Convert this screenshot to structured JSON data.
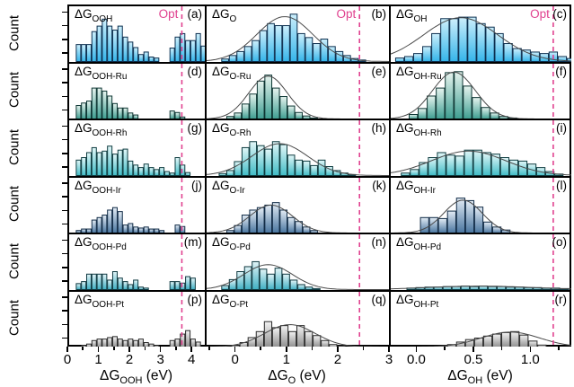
{
  "figure": {
    "ylabel": "Count",
    "opt_label": "Opt",
    "delta_g": "ΔG",
    "unit": " (eV)",
    "opt_color": "#e0418f",
    "curve_color": "#4a4a4a",
    "frame_color": "#000000",
    "background": "#ffffff"
  },
  "rows": [
    {
      "metal": "",
      "bar_top": "#cdeffc",
      "bar_bottom": "#35b5ea",
      "edge": "#0d3050"
    },
    {
      "metal": "Ru",
      "bar_top": "#e6f3ee",
      "bar_bottom": "#3e9e91",
      "edge": "#0e3734"
    },
    {
      "metal": "Rh",
      "bar_top": "#e2f7f8",
      "bar_bottom": "#41bcc6",
      "edge": "#0e3c40"
    },
    {
      "metal": "Ir",
      "bar_top": "#e3ecf5",
      "bar_bottom": "#49759f",
      "edge": "#122c47"
    },
    {
      "metal": "Pd",
      "bar_top": "#e2f4f7",
      "bar_bottom": "#3fafc3",
      "edge": "#103a42"
    },
    {
      "metal": "Pt",
      "bar_top": "#f2f2f2",
      "bar_bottom": "#909090",
      "edge": "#2b2b2b"
    }
  ],
  "columns": [
    {
      "key": "OOH",
      "title_main": "ΔG",
      "title_sub": "OOH",
      "title_unit": " (eV)",
      "xmin": 0,
      "xmax": 4.43,
      "opt_x": 3.68,
      "major_ticks": [
        0,
        1,
        2,
        3,
        4
      ],
      "tick_labels": [
        "0",
        "1",
        "2",
        "3",
        "4"
      ],
      "minor_ticks": [
        0.5,
        1.5,
        2.5,
        3.5
      ]
    },
    {
      "key": "O",
      "title_main": "ΔG",
      "title_sub": "O",
      "title_unit": " (eV)",
      "xmin": -0.59,
      "xmax": 3.0,
      "opt_x": 2.42,
      "major_ticks": [
        0,
        1,
        2,
        3
      ],
      "tick_labels": [
        "0",
        "1",
        "2",
        "3"
      ],
      "minor_ticks": [
        -0.5,
        0.5,
        1.5,
        2.5
      ]
    },
    {
      "key": "OH",
      "title_main": "ΔG",
      "title_sub": "OH",
      "title_unit": " (eV)",
      "xmin": -0.24,
      "xmax": 1.36,
      "opt_x": 1.2,
      "major_ticks": [
        0,
        0.5,
        1.0
      ],
      "tick_labels": [
        "0.0",
        "0.5",
        "1.0"
      ],
      "minor_ticks": [
        0.25,
        0.75,
        1.25
      ]
    }
  ],
  "chart_data": {
    "type": "bar",
    "subtype": "histogram-grid",
    "ylabel": "Count",
    "note": "heights are counts normalized to each panel height; bars start at x0 (eV) with uniform bin_width (eV); curve = gaussian fit {center,sigma,amp}",
    "panels": [
      {
        "letter": "(a)",
        "label_main": "ΔG",
        "label_sub": "OOH",
        "row": 0,
        "col": 0,
        "show_opt_label": true,
        "x0": 0.22,
        "bin_width": 0.17,
        "heights": [
          0.34,
          0.34,
          0.34,
          0.6,
          0.71,
          0.85,
          0.71,
          0.63,
          0.71,
          0.49,
          0.39,
          0.28,
          0.14,
          0.19,
          0.09,
          0.07,
          0,
          0,
          0.27,
          0.49,
          0.56,
          0.42,
          0.42,
          0.56,
          0.31
        ],
        "curve": null
      },
      {
        "letter": "(b)",
        "label_main": "ΔG",
        "label_sub": "O",
        "row": 0,
        "col": 1,
        "show_opt_label": true,
        "x0": -0.3,
        "bin_width": 0.15,
        "heights": [
          0.05,
          0.12,
          0.2,
          0.3,
          0.42,
          0.62,
          0.76,
          0.72,
          0.72,
          0.95,
          0.56,
          0.48,
          0.36,
          0.45,
          0.3,
          0.2,
          0.12,
          0.06,
          0.03
        ],
        "curve": {
          "center": 0.95,
          "sigma": 0.55,
          "amp": 0.9
        }
      },
      {
        "letter": "(c)",
        "label_main": "ΔG",
        "label_sub": "OH",
        "row": 0,
        "col": 2,
        "show_opt_label": true,
        "x0": -0.2,
        "bin_width": 0.08,
        "heights": [
          0.07,
          0.1,
          0.16,
          0.3,
          0.56,
          0.86,
          0.86,
          0.89,
          0.89,
          0.76,
          0.69,
          0.56,
          0.36,
          0.26,
          0.23,
          0.19,
          0.16,
          0.19,
          0.1,
          0.06
        ],
        "curve": {
          "center": 0.38,
          "sigma": 0.33,
          "amp": 0.88
        }
      },
      {
        "letter": "(d)",
        "label_main": "ΔG",
        "label_sub": "OOH-Ru",
        "row": 1,
        "col": 0,
        "show_opt_label": false,
        "x0": 0.22,
        "bin_width": 0.17,
        "heights": [
          0.27,
          0.32,
          0.36,
          0.62,
          0.62,
          0.56,
          0.46,
          0.31,
          0.22,
          0.22,
          0.12,
          0.08,
          0,
          0,
          0,
          0,
          0,
          0,
          0.16,
          0.13,
          0.04
        ],
        "curve": null
      },
      {
        "letter": "(e)",
        "label_main": "ΔG",
        "label_sub": "O-Ru",
        "row": 1,
        "col": 1,
        "show_opt_label": false,
        "x0": -0.2,
        "bin_width": 0.15,
        "heights": [
          0.05,
          0.12,
          0.3,
          0.5,
          0.76,
          0.88,
          0.62,
          0.45,
          0.26,
          0.13,
          0.06,
          0.02
        ],
        "curve": {
          "center": 0.62,
          "sigma": 0.38,
          "amp": 0.86
        }
      },
      {
        "letter": "(f)",
        "label_main": "ΔG",
        "label_sub": "OH-Ru",
        "row": 1,
        "col": 2,
        "show_opt_label": false,
        "x0": -0.08,
        "bin_width": 0.08,
        "heights": [
          0.09,
          0.21,
          0.46,
          0.62,
          0.93,
          0.95,
          0.66,
          0.43,
          0.23,
          0.12,
          0.05,
          0.02
        ],
        "curve": {
          "center": 0.32,
          "sigma": 0.19,
          "amp": 0.94
        }
      },
      {
        "letter": "(g)",
        "label_main": "ΔG",
        "label_sub": "OOH-Rh",
        "row": 2,
        "col": 0,
        "show_opt_label": false,
        "x0": 0.22,
        "bin_width": 0.17,
        "heights": [
          0.31,
          0.36,
          0.46,
          0.56,
          0.46,
          0.49,
          0.59,
          0.43,
          0.51,
          0.53,
          0.29,
          0.21,
          0.16,
          0.23,
          0.16,
          0.12,
          0.16,
          0.08,
          0.05,
          0.36,
          0.21,
          0.06,
          0,
          0,
          0
        ],
        "curve": null
      },
      {
        "letter": "(h)",
        "label_main": "ΔG",
        "label_sub": "O-Rh",
        "row": 2,
        "col": 1,
        "show_opt_label": false,
        "x0": -0.35,
        "bin_width": 0.15,
        "heights": [
          0.04,
          0.1,
          0.28,
          0.56,
          0.68,
          0.6,
          0.53,
          0.68,
          0.62,
          0.41,
          0.31,
          0.29,
          0.2,
          0.31,
          0.18,
          0.1,
          0.05,
          0.02
        ],
        "curve": {
          "center": 0.85,
          "sigma": 0.55,
          "amp": 0.64
        }
      },
      {
        "letter": "(i)",
        "label_main": "ΔG",
        "label_sub": "OH-Rh",
        "row": 2,
        "col": 2,
        "show_opt_label": false,
        "x0": -0.15,
        "bin_width": 0.08,
        "heights": [
          0.05,
          0.12,
          0.26,
          0.36,
          0.46,
          0.41,
          0.39,
          0.51,
          0.51,
          0.46,
          0.43,
          0.36,
          0.31,
          0.29,
          0.23,
          0.16,
          0.08,
          0.03
        ],
        "curve": {
          "center": 0.45,
          "sigma": 0.33,
          "amp": 0.49
        }
      },
      {
        "letter": "(j)",
        "label_main": "ΔG",
        "label_sub": "OOH-Ir",
        "row": 3,
        "col": 0,
        "show_opt_label": false,
        "x0": 0.22,
        "bin_width": 0.17,
        "heights": [
          0.05,
          0.08,
          0.08,
          0.26,
          0.31,
          0.36,
          0.46,
          0.51,
          0.43,
          0.16,
          0.19,
          0.12,
          0.1,
          0.12,
          0.08,
          0.08,
          0.05,
          0,
          0,
          0.16,
          0.13,
          0
        ],
        "curve": null
      },
      {
        "letter": "(k)",
        "label_main": "ΔG",
        "label_sub": "O-Ir",
        "row": 3,
        "col": 1,
        "show_opt_label": false,
        "x0": -0.2,
        "bin_width": 0.15,
        "heights": [
          0.05,
          0.15,
          0.36,
          0.46,
          0.51,
          0.56,
          0.61,
          0.46,
          0.31,
          0.23,
          0.12,
          0.05
        ],
        "curve": {
          "center": 0.68,
          "sigma": 0.42,
          "amp": 0.56
        }
      },
      {
        "letter": "(l)",
        "label_main": "ΔG",
        "label_sub": "OH-Ir",
        "row": 3,
        "col": 2,
        "show_opt_label": false,
        "x0": 0.02,
        "bin_width": 0.08,
        "heights": [
          0.31,
          0.31,
          0.29,
          0.44,
          0.7,
          0.65,
          0.52,
          0.22,
          0.12,
          0.06
        ],
        "curve": {
          "center": 0.4,
          "sigma": 0.17,
          "amp": 0.66
        }
      },
      {
        "letter": "(m)",
        "label_main": "ΔG",
        "label_sub": "OOH-Pd",
        "row": 4,
        "col": 0,
        "show_opt_label": false,
        "x0": 0.22,
        "bin_width": 0.17,
        "heights": [
          0.12,
          0.16,
          0.31,
          0.31,
          0.31,
          0.31,
          0.19,
          0.36,
          0.23,
          0.16,
          0.1,
          0.19,
          0.05,
          0.03,
          0,
          0,
          0,
          0,
          0.16,
          0.16,
          0.13,
          0.26,
          0.23
        ],
        "curve": null
      },
      {
        "letter": "(n)",
        "label_main": "ΔG",
        "label_sub": "O-Pd",
        "row": 4,
        "col": 1,
        "show_opt_label": false,
        "x0": -0.3,
        "bin_width": 0.15,
        "heights": [
          0.08,
          0.2,
          0.36,
          0.46,
          0.56,
          0.41,
          0.31,
          0.43,
          0.31,
          0.19,
          0.1,
          0.05,
          0.02
        ],
        "curve": {
          "center": 0.62,
          "sigma": 0.48,
          "amp": 0.5
        }
      },
      {
        "letter": "(o)",
        "label_main": "ΔG",
        "label_sub": "OH-Pd",
        "row": 4,
        "col": 2,
        "show_opt_label": false,
        "x0": -0.1,
        "bin_width": 0.08,
        "heights": [
          0.03,
          0.04,
          0.05,
          0.05,
          0.06,
          0.06,
          0.07,
          0.06,
          0.07,
          0.06,
          0.06,
          0.05,
          0.05,
          0.04,
          0.04,
          0.03,
          0.03,
          0.02
        ],
        "curve": {
          "center": 0.55,
          "sigma": 0.45,
          "amp": 0.07
        }
      },
      {
        "letter": "(p)",
        "label_main": "ΔG",
        "label_sub": "OOH-Pt",
        "row": 5,
        "col": 0,
        "show_opt_label": false,
        "x0": 0.39,
        "bin_width": 0.17,
        "heights": [
          0.03,
          0.06,
          0.13,
          0.16,
          0.16,
          0.19,
          0.21,
          0.16,
          0.13,
          0.16,
          0.13,
          0.16,
          0.09,
          0.06,
          0.03,
          0,
          0,
          0.13,
          0.16,
          0.26,
          0.33,
          0.16,
          0.1
        ],
        "curve": null
      },
      {
        "letter": "(q)",
        "label_main": "ΔG",
        "label_sub": "O-Pt",
        "row": 5,
        "col": 1,
        "show_opt_label": false,
        "x0": -0.1,
        "bin_width": 0.16,
        "heights": [
          0.03,
          0.09,
          0.19,
          0.31,
          0.51,
          0.39,
          0.43,
          0.31,
          0.43,
          0.31,
          0.23,
          0.13,
          0.05,
          0.02
        ],
        "curve": {
          "center": 1.05,
          "sigma": 0.5,
          "amp": 0.45
        }
      },
      {
        "letter": "(r)",
        "label_main": "ΔG",
        "label_sub": "OH-Pt",
        "row": 5,
        "col": 2,
        "show_opt_label": false,
        "x0": 0.18,
        "bin_width": 0.08,
        "heights": [
          0.02,
          0.05,
          0.1,
          0.15,
          0.18,
          0.22,
          0.26,
          0.29,
          0.31,
          0.24,
          0.12,
          0.04
        ],
        "curve": {
          "center": 0.82,
          "sigma": 0.26,
          "amp": 0.3
        }
      }
    ]
  }
}
